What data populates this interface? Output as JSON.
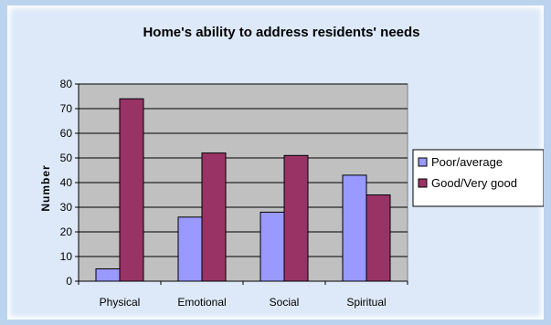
{
  "chart_data": {
    "type": "bar",
    "title": "Home's ability to address residents' needs",
    "xlabel": "",
    "ylabel": "Number",
    "categories": [
      "Physical",
      "Emotional",
      "Social",
      "Spiritual"
    ],
    "series": [
      {
        "name": "Poor/average",
        "values": [
          5,
          26,
          28,
          43
        ],
        "color": "#9999ff"
      },
      {
        "name": "Good/Very good",
        "values": [
          74,
          52,
          51,
          35
        ],
        "color": "#993366"
      }
    ],
    "ylim": [
      0,
      80
    ],
    "yticks": [
      0,
      10,
      20,
      30,
      40,
      50,
      60,
      70,
      80
    ],
    "grid": true,
    "plot_background": "#c0c0c0",
    "legend": "right"
  }
}
